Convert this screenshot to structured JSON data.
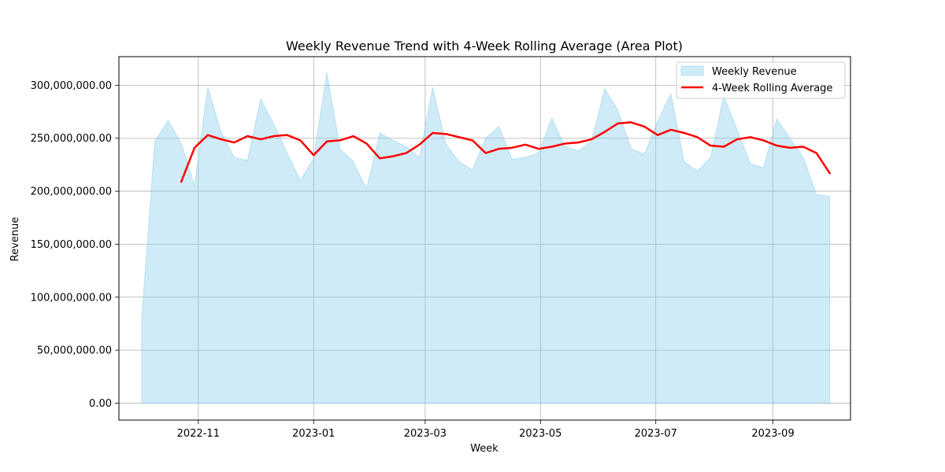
{
  "chart_data": {
    "type": "area",
    "title": "Weekly Revenue Trend with 4-Week Rolling Average (Area Plot)",
    "xlabel": "Week",
    "ylabel": "Revenue",
    "ylim": [
      -16000000,
      327000000
    ],
    "xlim": [
      "2022-09-20",
      "2023-10-12"
    ],
    "grid": true,
    "legend_position": "top-right",
    "x_ticks": [
      "2022-11-01",
      "2023-01-01",
      "2023-03-01",
      "2023-05-01",
      "2023-07-01",
      "2023-09-01"
    ],
    "x_tick_labels": [
      "2022-11",
      "2023-01",
      "2023-03",
      "2023-05",
      "2023-07",
      "2023-09"
    ],
    "y_ticks": [
      0,
      50000000,
      100000000,
      150000000,
      200000000,
      250000000,
      300000000
    ],
    "y_tick_labels": [
      "0.00",
      "50,000,000.00",
      "100,000,000.00",
      "150,000,000.00",
      "200,000,000.00",
      "250,000,000.00",
      "300,000,000.00"
    ],
    "colors": {
      "area_fill": "#87ceeb",
      "area_edge": "#87ceeb",
      "rolling_line": "#ff0000"
    },
    "start_week": "2022-10-02",
    "week_step_days": 7,
    "series": [
      {
        "name": "Weekly Revenue",
        "kind": "area",
        "values": [
          78000000,
          247000000,
          267000000,
          245000000,
          205000000,
          298000000,
          256000000,
          232000000,
          229000000,
          287000000,
          263000000,
          236000000,
          210000000,
          231000000,
          312000000,
          240000000,
          228000000,
          202000000,
          255000000,
          248000000,
          242000000,
          232000000,
          298000000,
          244000000,
          228000000,
          220000000,
          250000000,
          261000000,
          230000000,
          232000000,
          236000000,
          269000000,
          242000000,
          238000000,
          247000000,
          297000000,
          276000000,
          240000000,
          235000000,
          266000000,
          292000000,
          228000000,
          219000000,
          232000000,
          290000000,
          258000000,
          226000000,
          222000000,
          268000000,
          250000000,
          232000000,
          197000000,
          195000000
        ]
      },
      {
        "name": "4-Week Rolling Average",
        "kind": "line",
        "values": [
          null,
          null,
          null,
          209000000,
          241000000,
          253000000,
          249000000,
          246000000,
          252000000,
          249000000,
          252000000,
          253000000,
          248000000,
          234000000,
          247000000,
          248000000,
          252000000,
          245000000,
          231000000,
          233000000,
          236000000,
          244000000,
          255000000,
          254000000,
          251000000,
          248000000,
          236000000,
          240000000,
          241000000,
          244000000,
          240000000,
          242000000,
          245000000,
          246000000,
          249000000,
          256000000,
          264000000,
          265000000,
          261000000,
          253000000,
          258000000,
          255000000,
          251000000,
          243000000,
          242000000,
          249000000,
          251000000,
          248000000,
          243000000,
          241000000,
          242000000,
          236000000,
          217000000
        ]
      }
    ]
  }
}
